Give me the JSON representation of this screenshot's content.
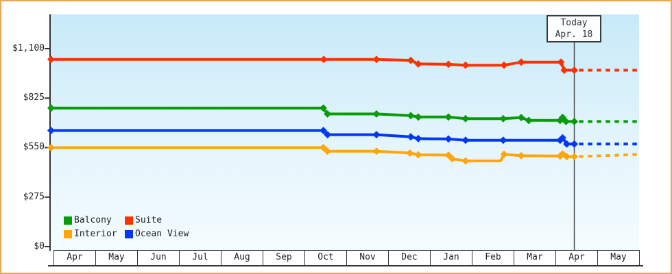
{
  "ui": {
    "today_box": {
      "line1": "Today",
      "line2": "Apr. 18"
    },
    "legend": {
      "items": [
        {
          "label": "Balcony",
          "color": "#0A9B0A"
        },
        {
          "label": "Suite",
          "color": "#FC3203"
        },
        {
          "label": "Interior",
          "color": "#FFA60D"
        },
        {
          "label": "Ocean View",
          "color": "#0238F5"
        }
      ]
    },
    "colors": {
      "frame_border": "#E9A659",
      "axis": "#333333",
      "today_line": "#4A4A4A",
      "plot_gradient_top": "#C7EAF8",
      "plot_gradient_bottom": "#F4FCFF"
    }
  },
  "chart_data": {
    "type": "line",
    "title": "",
    "description": "Cabin price history by category with dashed forecast after today marker",
    "x_axis": {
      "months": [
        "Apr",
        "May",
        "Jun",
        "Jul",
        "Aug",
        "Sep",
        "Oct",
        "Nov",
        "Dec",
        "Jan",
        "Feb",
        "Mar",
        "Apr",
        "May"
      ]
    },
    "y_axis": {
      "ticks": [
        {
          "price": 0,
          "label": "$0"
        },
        {
          "price": 275,
          "label": "$275"
        },
        {
          "price": 550,
          "label": "$550"
        },
        {
          "price": 825,
          "label": "$825"
        },
        {
          "price": 1100,
          "label": "$1,100"
        }
      ],
      "range": [
        0,
        1290
      ]
    },
    "today": {
      "month_frac": 12.44,
      "label_line1": "Today",
      "label_line2": "Apr. 18"
    },
    "legend_position": "inside-bottom-left",
    "grid": false,
    "series": [
      {
        "name": "Suite",
        "color": "#FC3203",
        "points": [
          {
            "mf": -0.07,
            "price": 1040
          },
          {
            "mf": 6.45,
            "price": 1040
          },
          {
            "mf": 7.71,
            "price": 1040
          },
          {
            "mf": 8.53,
            "price": 1035
          },
          {
            "mf": 8.71,
            "price": 1015
          },
          {
            "mf": 9.43,
            "price": 1013
          },
          {
            "mf": 9.84,
            "price": 1008
          },
          {
            "mf": 10.76,
            "price": 1008
          },
          {
            "mf": 11.17,
            "price": 1025
          },
          {
            "mf": 12.12,
            "price": 1025
          },
          {
            "mf": 12.2,
            "price": 980
          },
          {
            "mf": 12.44,
            "price": 980
          }
        ],
        "forecast": [
          {
            "mf": 12.55,
            "price": 980
          },
          {
            "mf": 13.95,
            "price": 980
          }
        ]
      },
      {
        "name": "Balcony",
        "color": "#0A9B0A",
        "points": [
          {
            "mf": -0.07,
            "price": 770
          },
          {
            "mf": 6.44,
            "price": 770
          },
          {
            "mf": 6.54,
            "price": 737
          },
          {
            "mf": 7.71,
            "price": 737
          },
          {
            "mf": 8.53,
            "price": 728
          },
          {
            "mf": 8.71,
            "price": 720
          },
          {
            "mf": 9.43,
            "price": 720
          },
          {
            "mf": 9.84,
            "price": 711
          },
          {
            "mf": 10.74,
            "price": 711
          },
          {
            "mf": 11.17,
            "price": 717
          },
          {
            "mf": 11.35,
            "price": 701
          },
          {
            "mf": 12.1,
            "price": 701
          },
          {
            "mf": 12.16,
            "price": 718
          },
          {
            "mf": 12.24,
            "price": 695
          },
          {
            "mf": 12.44,
            "price": 695
          }
        ],
        "forecast": [
          {
            "mf": 12.55,
            "price": 695
          },
          {
            "mf": 13.95,
            "price": 695
          }
        ]
      },
      {
        "name": "Ocean View",
        "color": "#0238F5",
        "points": [
          {
            "mf": -0.07,
            "price": 645
          },
          {
            "mf": 6.44,
            "price": 645
          },
          {
            "mf": 6.54,
            "price": 622
          },
          {
            "mf": 7.71,
            "price": 622
          },
          {
            "mf": 8.53,
            "price": 610
          },
          {
            "mf": 8.71,
            "price": 600
          },
          {
            "mf": 9.43,
            "price": 598
          },
          {
            "mf": 9.84,
            "price": 591
          },
          {
            "mf": 10.74,
            "price": 591
          },
          {
            "mf": 12.1,
            "price": 591
          },
          {
            "mf": 12.16,
            "price": 604
          },
          {
            "mf": 12.26,
            "price": 570
          },
          {
            "mf": 12.44,
            "price": 570
          }
        ],
        "forecast": [
          {
            "mf": 12.55,
            "price": 570
          },
          {
            "mf": 13.95,
            "price": 570
          }
        ]
      },
      {
        "name": "Interior",
        "color": "#FFA60D",
        "points": [
          {
            "mf": -0.07,
            "price": 550
          },
          {
            "mf": 6.44,
            "price": 550
          },
          {
            "mf": 6.54,
            "price": 530
          },
          {
            "mf": 7.71,
            "price": 530
          },
          {
            "mf": 8.51,
            "price": 520
          },
          {
            "mf": 8.71,
            "price": 510
          },
          {
            "mf": 9.43,
            "price": 508
          },
          {
            "mf": 9.52,
            "price": 488
          },
          {
            "mf": 9.84,
            "price": 476
          },
          {
            "mf": 10.68,
            "price": 476,
            "marker": false
          },
          {
            "mf": 10.76,
            "price": 513
          },
          {
            "mf": 11.17,
            "price": 505
          },
          {
            "mf": 12.1,
            "price": 503
          },
          {
            "mf": 12.16,
            "price": 515
          },
          {
            "mf": 12.26,
            "price": 500
          },
          {
            "mf": 12.44,
            "price": 500
          }
        ],
        "forecast": [
          {
            "mf": 12.55,
            "price": 500
          },
          {
            "mf": 13.95,
            "price": 512
          }
        ]
      }
    ]
  }
}
